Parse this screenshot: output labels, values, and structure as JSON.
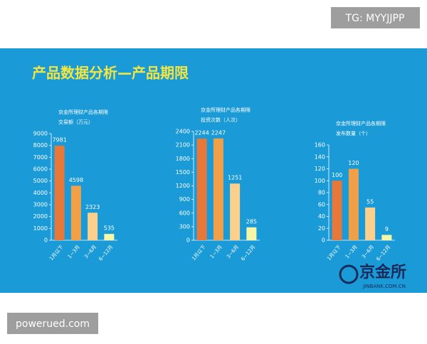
{
  "title": "产品数据分析—产品期限",
  "watermark_top": "TG: MYYJJPP",
  "watermark_bottom": "powerued.com",
  "logo": {
    "name": "京金所",
    "url": "JINBANK.COM.CN"
  },
  "chart_data": [
    {
      "type": "bar",
      "title": "京金所理财产品各期限",
      "ylabel": "交易额（万元）",
      "categories": [
        "1月以下",
        "1~3月",
        "3~6月",
        "6~12月"
      ],
      "values": [
        7981,
        4598,
        2323,
        535
      ],
      "colors": [
        "#e8783a",
        "#f0a048",
        "#fcd08a",
        "#f6f6a8"
      ],
      "ylim": [
        0,
        9000
      ],
      "yticks": [
        0,
        1000,
        2000,
        3000,
        4000,
        5000,
        6000,
        7000,
        8000,
        9000
      ]
    },
    {
      "type": "bar",
      "title": "京金所理财产品各期限",
      "ylabel": "投资次数（人次）",
      "categories": [
        "1月以下",
        "1~3月",
        "3~6月",
        "6~12月"
      ],
      "values": [
        2244,
        2247,
        1251,
        285
      ],
      "colors": [
        "#e8783a",
        "#f0a048",
        "#fcd08a",
        "#f6f6a8"
      ],
      "ylim": [
        0,
        2400
      ],
      "yticks": [
        0,
        300,
        600,
        900,
        1200,
        1500,
        1800,
        2100,
        2400
      ]
    },
    {
      "type": "bar",
      "title": "京金所理财产品各期限",
      "ylabel": "发布数量（个）",
      "categories": [
        "1月以下",
        "1~3月",
        "3~6月",
        "6~12月"
      ],
      "values": [
        100,
        120,
        55,
        9
      ],
      "colors": [
        "#e8783a",
        "#f0a048",
        "#fcd08a",
        "#f6f6a8"
      ],
      "ylim": [
        0,
        160
      ],
      "yticks": [
        0,
        20,
        40,
        60,
        80,
        100,
        120,
        140,
        160
      ]
    }
  ]
}
